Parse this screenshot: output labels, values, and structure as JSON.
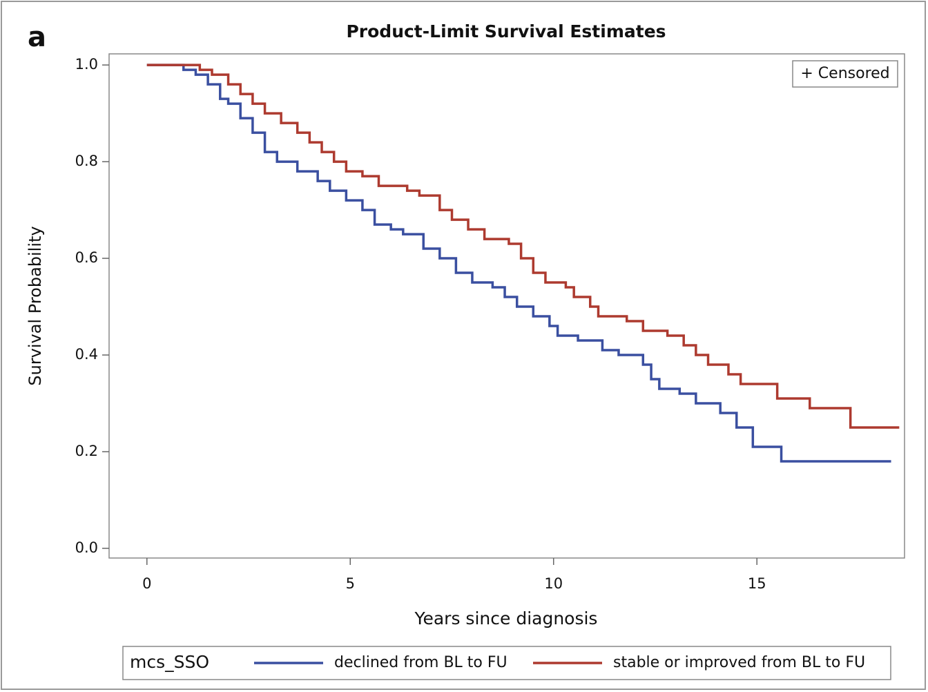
{
  "chart_data": {
    "type": "step",
    "panel_label": "a",
    "title": "Product-Limit Survival Estimates",
    "x_label": "Years since diagnosis",
    "y_label": "Survival Probability",
    "censored_label": "+ Censored",
    "legend_title": "mcs_SSO",
    "xlim": [
      -0.93,
      18.63
    ],
    "ylim": [
      -0.02,
      1.023
    ],
    "xticks": [
      0,
      5,
      10,
      15
    ],
    "yticks": [
      {
        "value": 0,
        "label": "0.0"
      },
      0.2,
      0.4,
      0.6,
      0.8,
      {
        "value": 1,
        "label": "1.0"
      }
    ],
    "series": [
      {
        "name": "declined from BL to FU",
        "color": "#3a4fa0",
        "x": [
          0,
          0.7,
          0.9,
          1.2,
          1.5,
          1.8,
          2.0,
          2.3,
          2.6,
          2.9,
          3.2,
          3.7,
          4.2,
          4.5,
          4.9,
          5.3,
          5.6,
          6.0,
          6.3,
          6.8,
          7.2,
          7.6,
          8.0,
          8.5,
          8.8,
          9.1,
          9.5,
          9.9,
          10.1,
          10.6,
          11.2,
          11.6,
          12.2,
          12.4,
          12.6,
          13.1,
          13.5,
          14.1,
          14.5,
          14.9,
          15.6,
          18.3
        ],
        "values": [
          1.0,
          1.0,
          0.99,
          0.98,
          0.96,
          0.93,
          0.92,
          0.89,
          0.86,
          0.82,
          0.8,
          0.78,
          0.76,
          0.74,
          0.72,
          0.7,
          0.67,
          0.66,
          0.65,
          0.62,
          0.6,
          0.57,
          0.55,
          0.54,
          0.52,
          0.5,
          0.48,
          0.46,
          0.44,
          0.43,
          0.41,
          0.4,
          0.38,
          0.35,
          0.33,
          0.32,
          0.3,
          0.28,
          0.25,
          0.21,
          0.18,
          0.18
        ]
      },
      {
        "name": "stable or improved from BL to FU",
        "color": "#ad3a2f",
        "x": [
          0,
          0.9,
          1.3,
          1.6,
          2.0,
          2.3,
          2.6,
          2.9,
          3.3,
          3.7,
          4.0,
          4.3,
          4.6,
          4.9,
          5.3,
          5.7,
          6.4,
          6.7,
          7.2,
          7.5,
          7.9,
          8.3,
          8.9,
          9.2,
          9.5,
          9.8,
          10.3,
          10.5,
          10.9,
          11.1,
          11.8,
          12.2,
          12.8,
          13.2,
          13.5,
          13.8,
          14.3,
          14.6,
          15.5,
          16.3,
          17.3,
          18.5
        ],
        "values": [
          1.0,
          1.0,
          0.99,
          0.98,
          0.96,
          0.94,
          0.92,
          0.9,
          0.88,
          0.86,
          0.84,
          0.82,
          0.8,
          0.78,
          0.77,
          0.75,
          0.74,
          0.73,
          0.7,
          0.68,
          0.66,
          0.64,
          0.63,
          0.6,
          0.57,
          0.55,
          0.54,
          0.52,
          0.5,
          0.48,
          0.47,
          0.45,
          0.44,
          0.42,
          0.4,
          0.38,
          0.36,
          0.34,
          0.31,
          0.29,
          0.25,
          0.25
        ]
      }
    ]
  }
}
